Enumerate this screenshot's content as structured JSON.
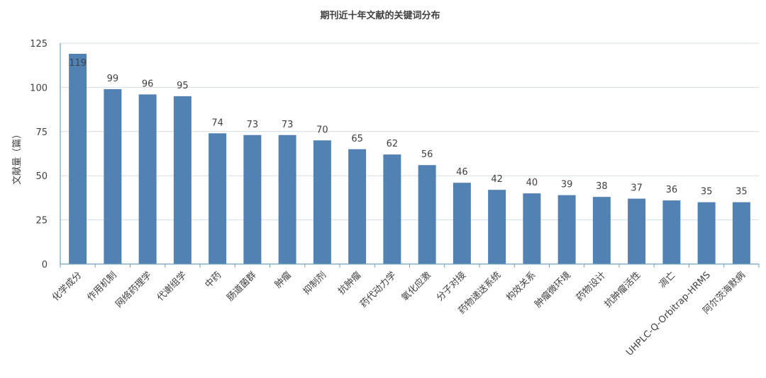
{
  "chart_data": {
    "type": "bar",
    "title": "期刊近十年文献的关键词分布",
    "ylabel": "文献量（篇）",
    "xlabel": "",
    "ylim": [
      0,
      125
    ],
    "yticks": [
      0,
      25,
      50,
      75,
      100,
      125
    ],
    "grid": true,
    "bar_color": "#5282b4",
    "categories": [
      "化学成分",
      "作用机制",
      "网络药理学",
      "代谢组学",
      "中药",
      "肠道菌群",
      "肿瘤",
      "抑制剂",
      "抗肿瘤",
      "药代动力学",
      "氧化应激",
      "分子对接",
      "药物递送系统",
      "构效关系",
      "肿瘤微环境",
      "药物设计",
      "抗肿瘤活性",
      "凋亡",
      "UHPLC-Q-Orbitrap-HRMS",
      "阿尔茨海默病"
    ],
    "values": [
      119,
      99,
      96,
      95,
      74,
      73,
      73,
      70,
      65,
      62,
      56,
      46,
      42,
      40,
      39,
      38,
      37,
      36,
      35,
      35
    ]
  }
}
